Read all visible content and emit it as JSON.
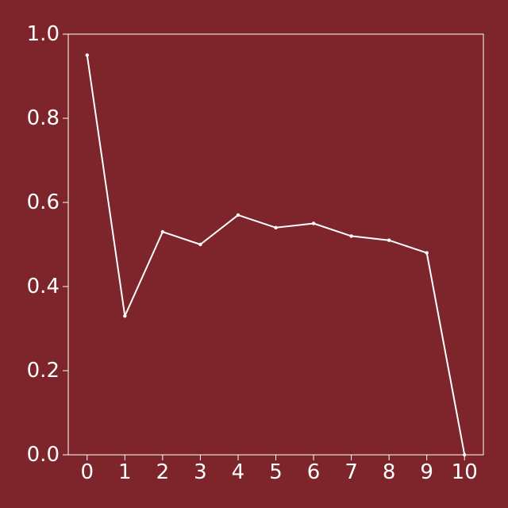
{
  "colors": {
    "background": "#7d252a",
    "foreground": "#ffffff"
  },
  "chart_data": {
    "type": "line",
    "title": "",
    "xlabel": "",
    "ylabel": "",
    "x": [
      0,
      1,
      2,
      3,
      4,
      5,
      6,
      7,
      8,
      9,
      10
    ],
    "series": [
      {
        "values": [
          0.95,
          0.33,
          0.53,
          0.5,
          0.57,
          0.54,
          0.55,
          0.52,
          0.51,
          0.48,
          0.0
        ],
        "color": "#ffffff",
        "marker": "dot"
      }
    ],
    "xlim": [
      -0.5,
      10.5
    ],
    "ylim": [
      0.0,
      1.0
    ],
    "x_ticks": [
      0,
      1,
      2,
      3,
      4,
      5,
      6,
      7,
      8,
      9,
      10
    ],
    "x_tick_labels": [
      "0",
      "1",
      "2",
      "3",
      "4",
      "5",
      "6",
      "7",
      "8",
      "9",
      "10"
    ],
    "y_ticks": [
      0.0,
      0.2,
      0.4,
      0.6,
      0.8,
      1.0
    ],
    "y_tick_labels": [
      "0.0",
      "0.2",
      "0.4",
      "0.6",
      "0.8",
      "1.0"
    ],
    "grid": false,
    "legend": "none"
  }
}
